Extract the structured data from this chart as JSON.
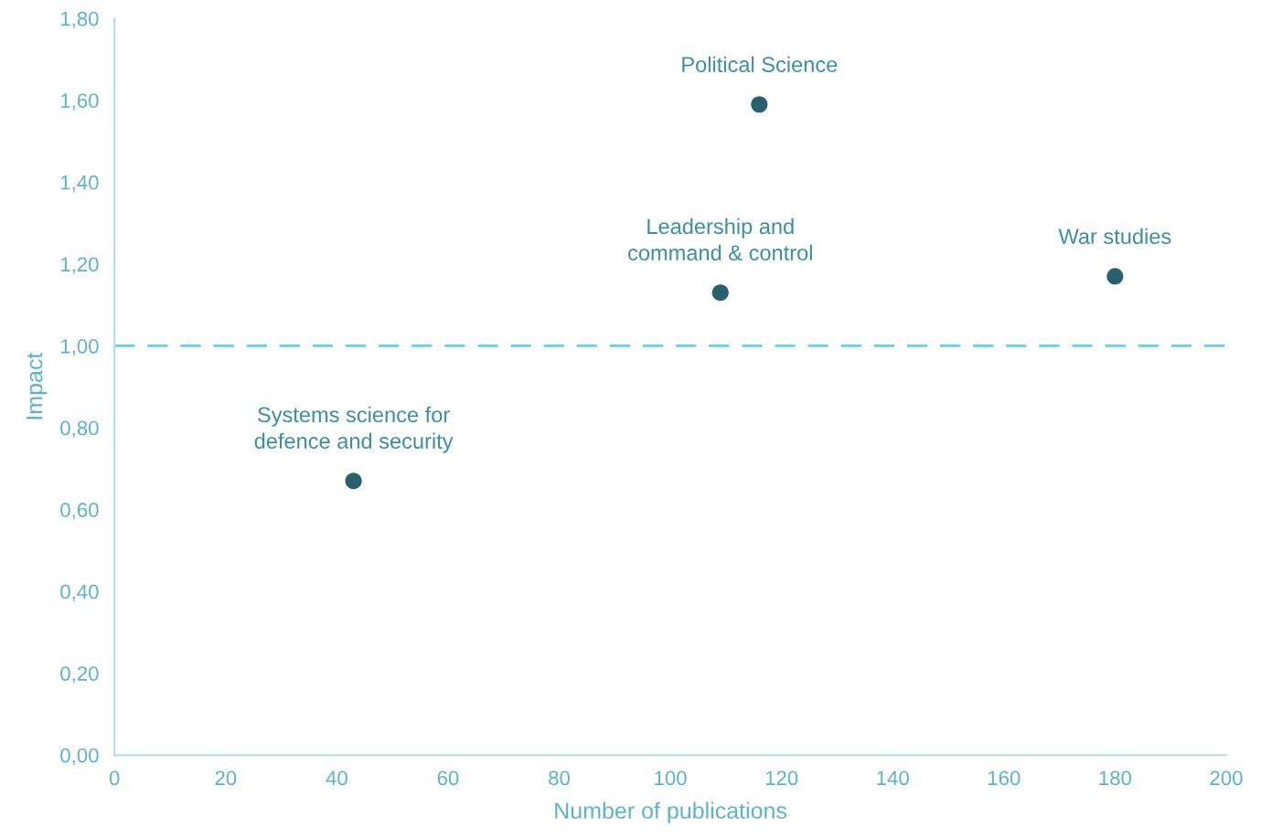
{
  "chart_data": {
    "type": "scatter",
    "xlabel": "Number of publications",
    "ylabel": "Impact",
    "x": [
      43,
      109,
      116,
      180
    ],
    "series": [
      {
        "color": "#2b5f6b",
        "values": [
          0.67,
          1.13,
          1.59,
          1.17
        ]
      }
    ],
    "marker": "circle",
    "grid": false,
    "legend": false,
    "xlim": [
      0,
      200
    ],
    "xticks": [
      0,
      20,
      40,
      60,
      80,
      100,
      120,
      140,
      160,
      180,
      200
    ],
    "ylim": [
      0,
      1.8
    ],
    "yticks": [
      {
        "value": 0,
        "label": "0,00"
      },
      {
        "value": 0.2,
        "label": "0,20"
      },
      {
        "value": 0.4,
        "label": "0,40"
      },
      {
        "value": 0.6,
        "label": "0,60"
      },
      {
        "value": 0.8,
        "label": "0,80"
      },
      {
        "value": 1.0,
        "label": "1,00"
      },
      {
        "value": 1.2,
        "label": "1,20"
      },
      {
        "value": 1.4,
        "label": "1,40"
      },
      {
        "value": 1.6,
        "label": "1,60"
      },
      {
        "value": 1.8,
        "label": "1,80"
      }
    ],
    "ref_lines": [
      {
        "axis": "y",
        "value": 1.0,
        "color": "#5dd3ef",
        "line_style": "dashed"
      }
    ],
    "annotations": [
      {
        "text": "Systems science for\ndefence and security",
        "x": 43,
        "y": 0.67
      },
      {
        "text": "Leadership and\ncommand & control",
        "x": 109,
        "y": 1.13
      },
      {
        "text": "Political Science",
        "x": 116,
        "y": 1.59
      },
      {
        "text": "War studies",
        "x": 180,
        "y": 1.17
      }
    ]
  }
}
